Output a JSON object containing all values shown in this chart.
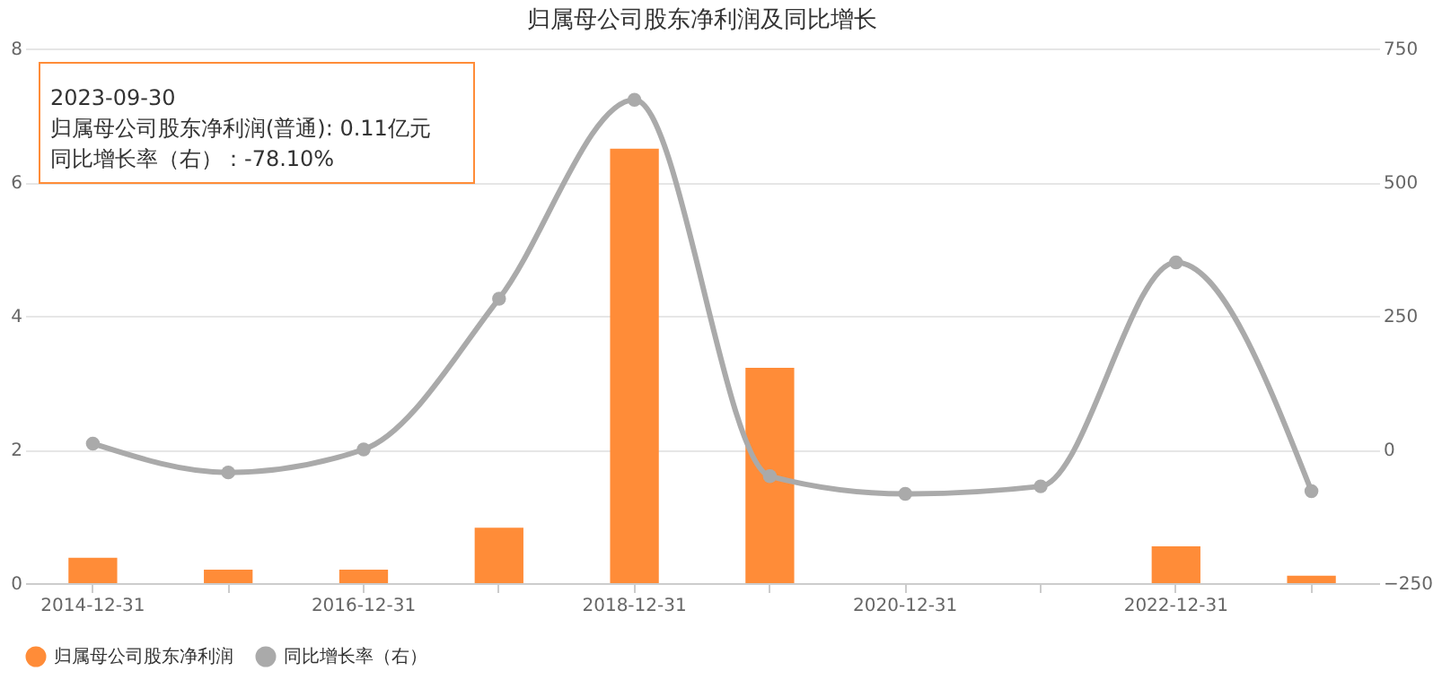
{
  "chart_data": {
    "type": "bar",
    "title": "归属母公司股东净利润及同比增长",
    "categories": [
      "2014-12-31",
      null,
      "2016-12-31",
      null,
      "2018-12-31",
      null,
      "2020-12-31",
      null,
      "2022-12-31",
      null
    ],
    "series": [
      {
        "name": "归属母公司股东净利润",
        "color": "#ff8c38",
        "values": [
          0.38,
          0.2,
          0.2,
          0.83,
          6.5,
          3.22,
          null,
          null,
          0.55,
          0.11
        ]
      },
      {
        "name": "同比增长率（右）",
        "color": "#aaaaaa",
        "type": "line",
        "axis": "y2",
        "marker": "circle",
        "values": [
          11,
          -43,
          0,
          282,
          654,
          -50,
          -83,
          -69,
          350,
          -78.1
        ]
      }
    ],
    "ylim": [
      0,
      8
    ],
    "yticks": [
      0,
      2,
      4,
      6,
      8
    ],
    "y2lim": [
      -250,
      750
    ],
    "y2ticks": [
      -250,
      0,
      250,
      500,
      750
    ],
    "grid": "y",
    "legend": "bottom",
    "annotations": [
      "2023-09-30",
      "归属母公司股东净利润(普通): 0.11亿元",
      "同比增长率（右）：-78.10%"
    ]
  }
}
